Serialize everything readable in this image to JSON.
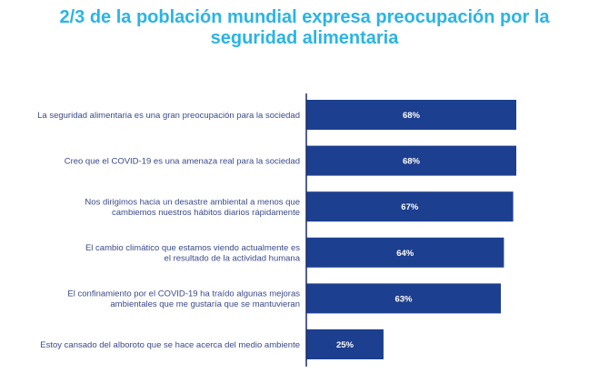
{
  "title": {
    "line1": "2/3 de la población mundial expresa preocupación por la",
    "line2": "seguridad alimentaria"
  },
  "colors": {
    "title": "#2ab4e6",
    "bar": "#1d3f8f",
    "axis": "#1a2b6b",
    "label": "#3a4a8a"
  },
  "chart_data": {
    "type": "bar",
    "orientation": "horizontal",
    "title": "2/3 de la población mundial expresa preocupación por la seguridad alimentaria",
    "xlabel": "",
    "ylabel": "",
    "xlim": [
      0,
      100
    ],
    "grid": false,
    "categories": [
      [
        "La seguridad alimentaria es una gran preocupación para la sociedad"
      ],
      [
        "Creo que el COVID-19 es una amenaza real para la sociedad"
      ],
      [
        "Nos dirigimos hacia un desastre ambiental a menos que",
        "cambiemos nuestros hábitos diarios rápidamente"
      ],
      [
        "El cambio climático que estamos viendo actualmente es",
        "el resultado de la actividad humana"
      ],
      [
        "El confinamiento por el COVID-19 ha traído algunas mejoras",
        "ambientales que me gustaría que se mantuvieran"
      ],
      [
        "Estoy cansado del alboroto que se hace acerca del medio ambiente"
      ]
    ],
    "values": [
      68,
      68,
      67,
      64,
      63,
      25
    ],
    "value_labels": [
      "68%",
      "68%",
      "67%",
      "64%",
      "63%",
      "25%"
    ]
  }
}
